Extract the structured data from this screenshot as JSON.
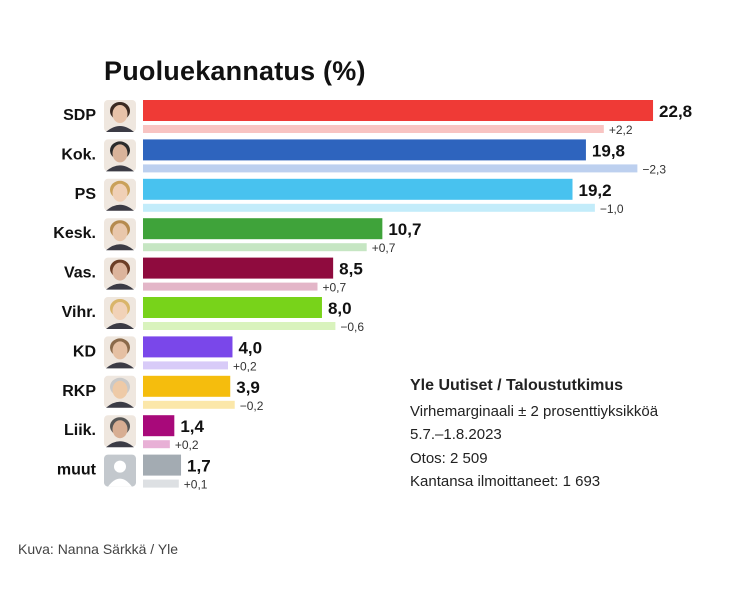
{
  "title": "Puoluekannatus (%)",
  "info": {
    "source": "Yle Uutiset / Taloustutkimus",
    "margin": "Virhemarginaali ± 2 prosenttiyksikköä",
    "period": "5.7.–1.8.2023",
    "sample": "Otos: 2 509",
    "respondents": "Kantansa ilmoittaneet: 1 693"
  },
  "credit": "Kuva: Nanna Särkkä / Yle",
  "chart_data": {
    "type": "bar",
    "orientation": "horizontal",
    "title": "Puoluekannatus (%)",
    "categories": [
      "SDP",
      "Kok.",
      "PS",
      "Kesk.",
      "Vas.",
      "Vihr.",
      "KD",
      "RKP",
      "Liik.",
      "muut"
    ],
    "series": [
      {
        "values": [
          22.8,
          19.8,
          19.2,
          10.7,
          8.5,
          8.0,
          4.0,
          3.9,
          1.4,
          1.7
        ]
      },
      {
        "values": [
          20.6,
          22.1,
          20.2,
          10.0,
          7.8,
          8.6,
          3.8,
          4.1,
          1.2,
          1.6
        ]
      }
    ],
    "value_labels": [
      "22,8",
      "19,8",
      "19,2",
      "10,7",
      "8,5",
      "8,0",
      "4,0",
      "3,9",
      "1,4",
      "1,7"
    ],
    "change_labels": [
      "+2,2",
      "−2,3",
      "−1,0",
      "+0,7",
      "+0,7",
      "−0,6",
      "+0,2",
      "−0,2",
      "+0,2",
      "+0,1"
    ],
    "colors": [
      "#ef3a36",
      "#2e64be",
      "#48c2ef",
      "#3fa33a",
      "#8f0b3e",
      "#78d31a",
      "#7a47ea",
      "#f5bd0d",
      "#a8097a",
      "#a3abb2"
    ],
    "light_colors": [
      "#f8c4c2",
      "#bdd0ef",
      "#c3ecfa",
      "#c6e6c3",
      "#e3b6c8",
      "#d9f3bd",
      "#d8cbf8",
      "#fbe7a9",
      "#e8b0d6",
      "#dde0e3"
    ],
    "xlim": [
      0,
      23.5
    ],
    "grid": false,
    "legend": "none"
  }
}
